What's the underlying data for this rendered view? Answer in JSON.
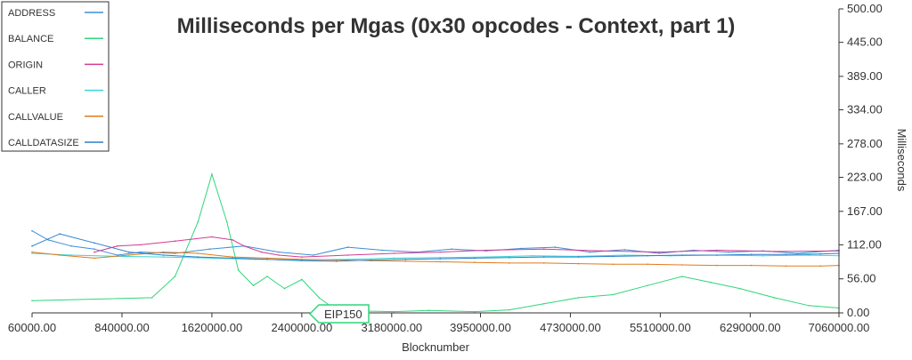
{
  "chart_data": {
    "type": "line",
    "title": "Milliseconds per Mgas (0x30 opcodes - Context, part 1)",
    "xlabel": "Blocknumber",
    "ylabel": "Milliseconds",
    "xlim": [
      60000,
      7060000
    ],
    "ylim": [
      0,
      500
    ],
    "x_ticks": [
      "60000.00",
      "840000.00",
      "1620000.00",
      "2400000.00",
      "3180000.00",
      "3950000.00",
      "4730000.00",
      "5510000.00",
      "6290000.00",
      "7060000.00"
    ],
    "x_tick_values": [
      60000,
      840000,
      1620000,
      2400000,
      3180000,
      3950000,
      4730000,
      5510000,
      6290000,
      7060000
    ],
    "y_ticks": [
      "0.00",
      "56.00",
      "112.00",
      "167.00",
      "223.00",
      "278.00",
      "334.00",
      "389.00",
      "445.00",
      "500.00"
    ],
    "y_tick_values": [
      0,
      56,
      112,
      167,
      223,
      278,
      334,
      389,
      445,
      500
    ],
    "y_axis_side": "right",
    "grid": false,
    "legend_position": "top-left",
    "annotation": {
      "label": "EIP150",
      "x": 2463000
    },
    "series": [
      {
        "name": "ADDRESS",
        "color": "#3b8fd6",
        "x": [
          60000,
          200000,
          400000,
          600000,
          800000,
          1000000,
          1300000,
          1600000,
          1900000,
          2200000,
          2500000,
          2800000,
          3100000,
          3400000,
          3700000,
          4000000,
          4300000,
          4600000,
          4900000,
          5200000,
          5500000,
          5800000,
          6100000,
          6400000,
          6700000,
          7060000
        ],
        "y": [
          135,
          120,
          110,
          105,
          95,
          100,
          98,
          105,
          110,
          100,
          95,
          108,
          103,
          100,
          105,
          102,
          106,
          108,
          100,
          104,
          98,
          103,
          100,
          102,
          98,
          103
        ]
      },
      {
        "name": "BALANCE",
        "color": "#2ed67a",
        "x": [
          60000,
          1100000,
          1300000,
          1500000,
          1620000,
          1750000,
          1850000,
          1980000,
          2100000,
          2250000,
          2400000,
          2550000,
          2700000,
          2900000,
          3200000,
          3500000,
          3900000,
          4200000,
          4500000,
          4800000,
          5100000,
          5400000,
          5700000,
          5950000,
          6200000,
          6500000,
          6800000,
          7060000
        ],
        "y": [
          20,
          25,
          60,
          150,
          228,
          150,
          70,
          45,
          60,
          40,
          55,
          25,
          4,
          3,
          2,
          4,
          2,
          5,
          15,
          25,
          30,
          45,
          60,
          50,
          40,
          25,
          12,
          8
        ]
      },
      {
        "name": "ORIGIN",
        "color": "#d63b8f",
        "x": [
          600000,
          800000,
          1000000,
          1300000,
          1620000,
          1800000,
          1900000,
          2050000,
          2200000,
          2400000,
          2800000,
          3200000,
          3600000,
          4000000,
          4500000,
          5000000,
          5500000,
          6000000,
          6500000,
          7060000
        ],
        "y": [
          100,
          110,
          112,
          118,
          125,
          120,
          110,
          100,
          95,
          92,
          95,
          98,
          100,
          103,
          105,
          102,
          100,
          103,
          101,
          102
        ]
      },
      {
        "name": "CALLER",
        "color": "#3bd6d6",
        "x": [
          60000,
          400000,
          800000,
          1200000,
          1620000,
          2000000,
          2400000,
          2800000,
          3200000,
          3600000,
          4000000,
          4400000,
          4800000,
          5200000,
          5600000,
          6000000,
          6400000,
          6800000,
          7060000
        ],
        "y": [
          98,
          95,
          93,
          92,
          90,
          88,
          87,
          88,
          90,
          91,
          92,
          94,
          93,
          95,
          94,
          95,
          94,
          95,
          94
        ]
      },
      {
        "name": "CALLVALUE",
        "color": "#e07b1a",
        "x": [
          60000,
          300000,
          600000,
          900000,
          1200000,
          1500000,
          1800000,
          2100000,
          2400000,
          2700000,
          3000000,
          3300000,
          3600000,
          3900000,
          4200000,
          4500000,
          4800000,
          5100000,
          5400000,
          5700000,
          6000000,
          6300000,
          6600000,
          6900000,
          7060000
        ],
        "y": [
          100,
          95,
          90,
          95,
          100,
          98,
          92,
          90,
          88,
          87,
          86,
          85,
          84,
          83,
          82,
          82,
          81,
          80,
          80,
          79,
          78,
          78,
          77,
          77,
          78
        ]
      },
      {
        "name": "CALLDATASIZE",
        "color": "#2a7fc9",
        "x": [
          60000,
          300000,
          600000,
          900000,
          1200000,
          1500000,
          1800000,
          2100000,
          2400000,
          2700000,
          3000000,
          3300000,
          3600000,
          3900000,
          4200000,
          4500000,
          4800000,
          5100000,
          5400000,
          5700000,
          6000000,
          6300000,
          6600000,
          6900000,
          7060000
        ],
        "y": [
          110,
          130,
          115,
          100,
          95,
          92,
          90,
          88,
          86,
          85,
          87,
          88,
          89,
          90,
          91,
          92,
          92,
          93,
          94,
          95,
          95,
          96,
          96,
          97,
          98
        ]
      }
    ]
  }
}
